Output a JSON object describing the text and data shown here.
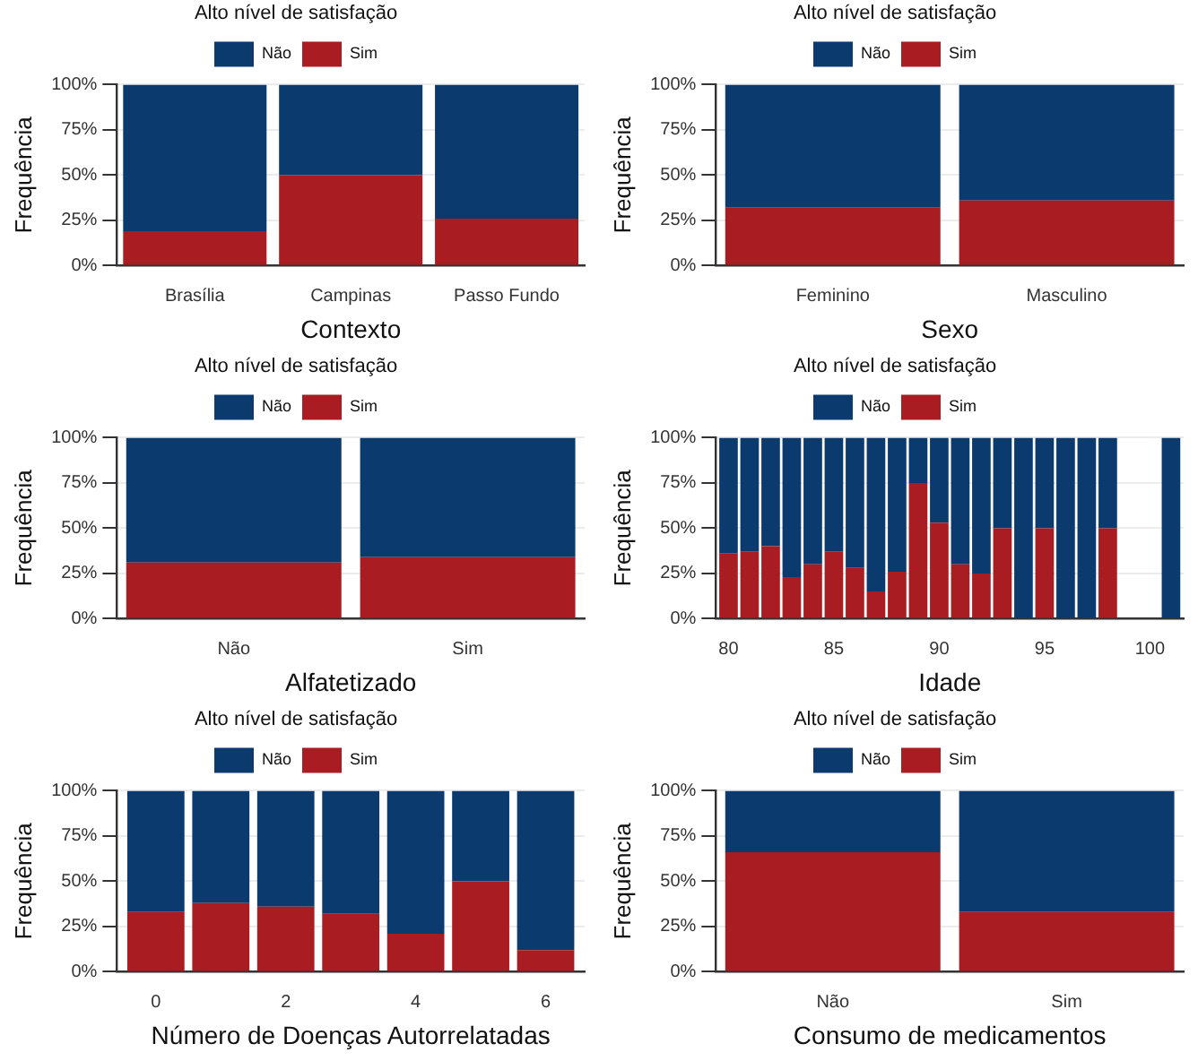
{
  "chart_data": [
    {
      "type": "bar",
      "stacked": true,
      "xlabel": "Contexto",
      "ylabel": "Frequência",
      "legend_title": "Alto nível de satisfação",
      "legend": "top",
      "grid": "y",
      "categories": [
        "Brasília",
        "Campinas",
        "Passo Fundo"
      ],
      "ylim": [
        0,
        100
      ],
      "yticks": [
        {
          "value": 0,
          "label": "0%"
        },
        {
          "value": 25,
          "label": "25%"
        },
        {
          "value": 50,
          "label": "50%"
        },
        {
          "value": 75,
          "label": "75%"
        },
        {
          "value": 100,
          "label": "100%"
        }
      ],
      "series": [
        {
          "name": "Sim",
          "color": "#a81c22",
          "values": [
            19,
            50,
            26
          ]
        },
        {
          "name": "Não",
          "color": "#0b3a6e",
          "values": [
            81,
            50,
            74
          ]
        }
      ]
    },
    {
      "type": "bar",
      "stacked": true,
      "xlabel": "Sexo",
      "ylabel": "Frequência",
      "legend_title": "Alto nível de satisfação",
      "legend": "top",
      "grid": "y",
      "categories": [
        "Feminino",
        "Masculino"
      ],
      "ylim": [
        0,
        100
      ],
      "yticks": [
        {
          "value": 0,
          "label": "0%"
        },
        {
          "value": 25,
          "label": "25%"
        },
        {
          "value": 50,
          "label": "50%"
        },
        {
          "value": 75,
          "label": "75%"
        },
        {
          "value": 100,
          "label": "100%"
        }
      ],
      "series": [
        {
          "name": "Sim",
          "color": "#a81c22",
          "values": [
            32,
            36
          ]
        },
        {
          "name": "Não",
          "color": "#0b3a6e",
          "values": [
            68,
            64
          ]
        }
      ]
    },
    {
      "type": "bar",
      "stacked": true,
      "xlabel": "Alfatetizado",
      "ylabel": "Frequência",
      "legend_title": "Alto nível de satisfação",
      "legend": "top",
      "grid": "y",
      "categories": [
        "Não",
        "Sim"
      ],
      "ylim": [
        0,
        100
      ],
      "yticks": [
        {
          "value": 0,
          "label": "0%"
        },
        {
          "value": 25,
          "label": "25%"
        },
        {
          "value": 50,
          "label": "50%"
        },
        {
          "value": 75,
          "label": "75%"
        },
        {
          "value": 100,
          "label": "100%"
        }
      ],
      "series": [
        {
          "name": "Sim",
          "color": "#a81c22",
          "values": [
            31,
            34
          ]
        },
        {
          "name": "Não",
          "color": "#0b3a6e",
          "values": [
            69,
            66
          ]
        }
      ]
    },
    {
      "type": "bar",
      "stacked": true,
      "xlabel": "Idade",
      "ylabel": "Frequência",
      "legend_title": "Alto nível de satisfação",
      "legend": "top",
      "grid": "y",
      "x": [
        80,
        81,
        82,
        83,
        84,
        85,
        86,
        87,
        88,
        89,
        90,
        91,
        92,
        93,
        94,
        95,
        96,
        97,
        98,
        101
      ],
      "xlim": [
        79.4,
        101.6
      ],
      "xticks": [
        80,
        85,
        90,
        95,
        100
      ],
      "ylim": [
        0,
        100
      ],
      "yticks": [
        {
          "value": 0,
          "label": "0%"
        },
        {
          "value": 25,
          "label": "25%"
        },
        {
          "value": 50,
          "label": "50%"
        },
        {
          "value": 75,
          "label": "75%"
        },
        {
          "value": 100,
          "label": "100%"
        }
      ],
      "series": [
        {
          "name": "Sim",
          "color": "#a81c22",
          "values": [
            36,
            37,
            40,
            23,
            30,
            37,
            28,
            15,
            26,
            75,
            53,
            30,
            25,
            50,
            0,
            50,
            0,
            0,
            50,
            0
          ]
        },
        {
          "name": "Não",
          "color": "#0b3a6e",
          "values": [
            64,
            63,
            60,
            77,
            70,
            63,
            72,
            85,
            74,
            25,
            47,
            70,
            75,
            50,
            100,
            50,
            100,
            100,
            50,
            100
          ]
        }
      ]
    },
    {
      "type": "bar",
      "stacked": true,
      "xlabel": "Número de Doenças Autorrelatadas",
      "ylabel": "Frequência",
      "legend_title": "Alto nível de satisfação",
      "legend": "top",
      "grid": "y",
      "x": [
        0,
        1,
        2,
        3,
        4,
        5,
        6
      ],
      "xlim": [
        -0.6,
        6.6
      ],
      "xticks": [
        0,
        2,
        4,
        6
      ],
      "ylim": [
        0,
        100
      ],
      "yticks": [
        {
          "value": 0,
          "label": "0%"
        },
        {
          "value": 25,
          "label": "25%"
        },
        {
          "value": 50,
          "label": "50%"
        },
        {
          "value": 75,
          "label": "75%"
        },
        {
          "value": 100,
          "label": "100%"
        }
      ],
      "series": [
        {
          "name": "Sim",
          "color": "#a81c22",
          "values": [
            33,
            38,
            36,
            32,
            21,
            50,
            12
          ]
        },
        {
          "name": "Não",
          "color": "#0b3a6e",
          "values": [
            67,
            62,
            64,
            68,
            79,
            50,
            88
          ]
        }
      ]
    },
    {
      "type": "bar",
      "stacked": true,
      "xlabel": "Consumo de medicamentos",
      "ylabel": "Frequência",
      "legend_title": "Alto nível de satisfação",
      "legend": "top",
      "grid": "y",
      "categories": [
        "Não",
        "Sim"
      ],
      "ylim": [
        0,
        100
      ],
      "yticks": [
        {
          "value": 0,
          "label": "0%"
        },
        {
          "value": 25,
          "label": "25%"
        },
        {
          "value": 50,
          "label": "50%"
        },
        {
          "value": 75,
          "label": "75%"
        },
        {
          "value": 100,
          "label": "100%"
        }
      ],
      "series": [
        {
          "name": "Sim",
          "color": "#a81c22",
          "values": [
            66,
            33
          ]
        },
        {
          "name": "Não",
          "color": "#0b3a6e",
          "values": [
            34,
            67
          ]
        }
      ]
    }
  ]
}
